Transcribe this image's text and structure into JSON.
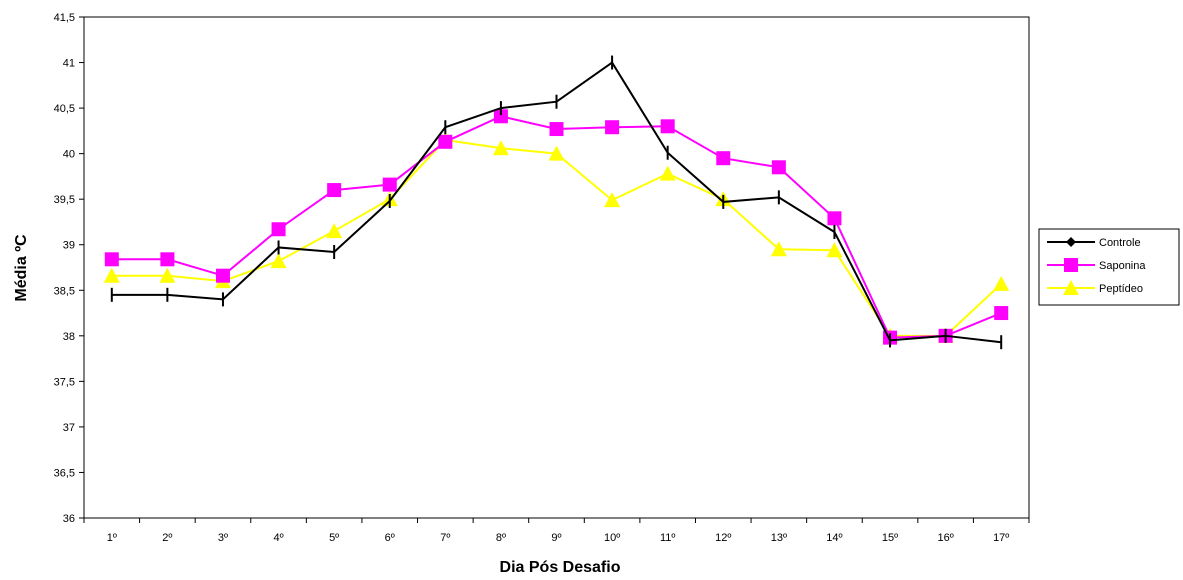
{
  "chart_data": {
    "type": "line",
    "xlabel": "Dia Pós Desafio",
    "ylabel": "Média ºC",
    "categories": [
      "1º",
      "2º",
      "3º",
      "4º",
      "5º",
      "6º",
      "7º",
      "8º",
      "9º",
      "10º",
      "11º",
      "12º",
      "13º",
      "14º",
      "15º",
      "16º",
      "17º"
    ],
    "ylim": [
      36,
      41.5
    ],
    "yticks": [
      "36",
      "36,5",
      "37",
      "37,5",
      "38",
      "38,5",
      "39",
      "39,5",
      "40",
      "40,5",
      "41",
      "41,5"
    ],
    "grid": false,
    "legend_position": "right",
    "series": [
      {
        "name": "Controle",
        "color": "#000000",
        "marker": "diamond",
        "values": [
          38.45,
          38.45,
          38.4,
          38.97,
          38.92,
          39.48,
          40.29,
          40.5,
          40.57,
          41.0,
          40.01,
          39.47,
          39.52,
          39.14,
          37.95,
          38.0,
          37.93
        ]
      },
      {
        "name": "Saponina",
        "color": "#ff00ff",
        "marker": "square",
        "values": [
          38.84,
          38.84,
          38.66,
          39.17,
          39.6,
          39.66,
          40.13,
          40.41,
          40.27,
          40.29,
          40.3,
          39.95,
          39.85,
          39.29,
          37.98,
          38.0,
          38.25
        ]
      },
      {
        "name": "Peptídeo",
        "color": "#ffff00",
        "marker": "triangle",
        "values": [
          38.66,
          38.66,
          38.6,
          38.82,
          39.15,
          39.5,
          40.15,
          40.06,
          40.0,
          39.49,
          39.78,
          39.5,
          38.95,
          38.94,
          38.0,
          38.0,
          38.57
        ]
      }
    ]
  }
}
